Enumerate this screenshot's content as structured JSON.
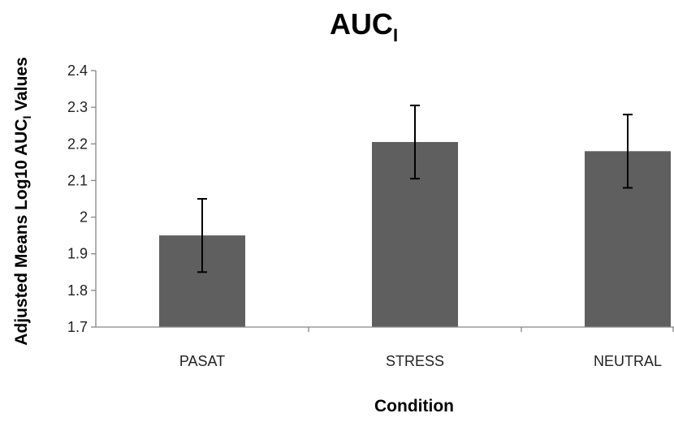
{
  "chart_data": {
    "type": "bar",
    "title": "AUC",
    "title_subscript": "I",
    "xlabel": "Condition",
    "ylabel_prefix": "Adjusted Means Log10 AUC",
    "ylabel_subscript": "I",
    "ylabel_suffix": " Values",
    "categories": [
      "PASAT",
      "STRESS",
      "NEUTRAL"
    ],
    "values": [
      1.95,
      2.205,
      2.18
    ],
    "error": [
      0.1,
      0.1,
      0.1
    ],
    "ylim": [
      1.7,
      2.4
    ],
    "yticks": [
      "1.7",
      "1.8",
      "1.9",
      "2",
      "2.1",
      "2.2",
      "2.3",
      "2.4"
    ],
    "grid": false,
    "legend": "none",
    "bar_color": "#5f5f5f",
    "axis_color": "#868686",
    "error_color": "#000000"
  }
}
